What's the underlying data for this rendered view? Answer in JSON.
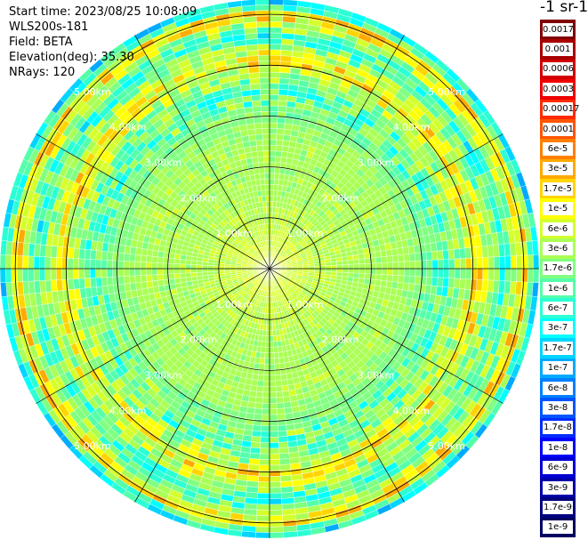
{
  "header": {
    "start_time": "Start time: 2023/08/25 10:08:09",
    "instrument": "WLS200s-181",
    "field": "Field: BETA",
    "elevation": "Elevation(deg): 35.30",
    "nrays": "NRays: 120"
  },
  "colorbar": {
    "title": "-1 sr-1",
    "labels": [
      "0.0017",
      "0.001",
      "0.0006",
      "0.0003",
      "0.00017",
      "0.0001",
      "6e-5",
      "3e-5",
      "1.7e-5",
      "1e-5",
      "6e-6",
      "3e-6",
      "1.7e-6",
      "1e-6",
      "6e-7",
      "3e-7",
      "1.7e-7",
      "1e-7",
      "6e-8",
      "3e-8",
      "1.7e-8",
      "1e-8",
      "6e-9",
      "3e-9",
      "1.7e-9",
      "1e-9"
    ],
    "colors": [
      "#800000",
      "#a80000",
      "#d20000",
      "#f00000",
      "#ff2a00",
      "#ff5500",
      "#ff8000",
      "#ffaa00",
      "#ffd400",
      "#ffff00",
      "#d4ff2b",
      "#aaff55",
      "#80ff80",
      "#55ffaa",
      "#2bffd4",
      "#00ffff",
      "#00d4ff",
      "#00aaff",
      "#0080ff",
      "#0055ff",
      "#002bff",
      "#0000ff",
      "#0000d4",
      "#0000aa",
      "#000080",
      "#000060"
    ]
  },
  "chart_data": {
    "type": "heatmap",
    "projection": "polar PPI scan",
    "field": "BETA",
    "elevation_deg": 35.3,
    "n_rays": 120,
    "scale": "log",
    "max_range_km": 5.3,
    "range_rings_km": [
      1,
      2,
      3,
      4,
      5
    ],
    "ring_labels": [
      "1.00km",
      "2.00km",
      "3.00km",
      "4.00km",
      "5.00km"
    ],
    "azimuth_lines_deg": [
      0,
      30,
      60,
      90,
      120,
      150,
      180,
      210,
      240,
      270,
      300,
      330
    ],
    "value_profile": [
      {
        "range_km": 0.5,
        "typical_value": "6e-6"
      },
      {
        "range_km": 1.5,
        "typical_value": "3e-6"
      },
      {
        "range_km": 2.5,
        "typical_value": "3e-6"
      },
      {
        "range_km": 3.5,
        "typical_value": "1e-6"
      },
      {
        "range_km": 4.1,
        "typical_value": "1e-5"
      },
      {
        "range_km": 4.6,
        "typical_value": "6e-7"
      },
      {
        "range_km": 5.0,
        "typical_value": "2e-5"
      },
      {
        "range_km": 5.2,
        "typical_value": "3e-7"
      }
    ]
  }
}
